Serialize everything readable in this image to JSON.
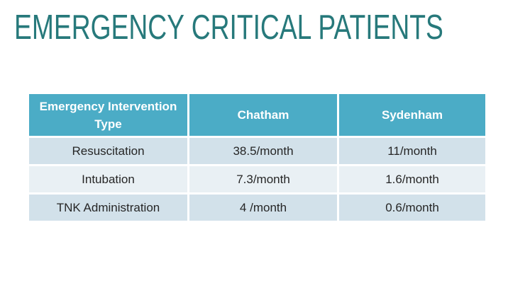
{
  "title": "EMERGENCY CRITICAL PATIENTS",
  "table": {
    "headers": [
      "Emergency Intervention Type",
      "Chatham",
      "Sydenham"
    ],
    "rows": [
      [
        "Resuscitation",
        "38.5/month",
        "11/month"
      ],
      [
        "Intubation",
        "7.3/month",
        "1.6/month"
      ],
      [
        "TNK Administration",
        "4 /month",
        "0.6/month"
      ]
    ]
  },
  "colors": {
    "title_text": "#27797B",
    "table_header_bg": "#4BACC6",
    "table_header_text": "#FFFFFF",
    "row_odd_bg": "#D2E1EA",
    "row_even_bg": "#E9F0F4",
    "body_text": "#262626",
    "slide_background": "#FFFFFF"
  }
}
